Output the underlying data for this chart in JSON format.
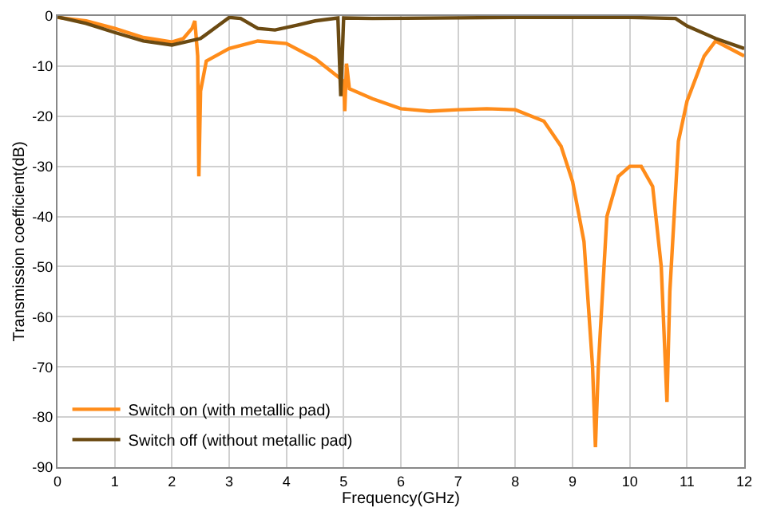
{
  "chart_data": {
    "type": "line",
    "xlabel": "Frequency(GHz)",
    "ylabel": "Transmission coefficient(dB)",
    "xlim": [
      0,
      12
    ],
    "xticks": [
      0,
      1,
      2,
      3,
      4,
      5,
      6,
      7,
      8,
      9,
      10,
      11,
      12
    ],
    "ylim": [
      -90,
      0
    ],
    "yticks": [
      -90,
      -80,
      -70,
      -60,
      -50,
      -40,
      -30,
      -20,
      -10,
      0
    ],
    "grid": true,
    "legend": "bottom left",
    "marker": "none",
    "line_style": "solid",
    "series": [
      {
        "name": "Switch on (with metallic pad)",
        "color": "#ff8c1a",
        "x": [
          0,
          0.5,
          1,
          1.5,
          2,
          2.2,
          2.35,
          2.4,
          2.45,
          2.47,
          2.5,
          2.6,
          3,
          3.5,
          4,
          4.5,
          5,
          5.02,
          5.05,
          5.1,
          5.5,
          6,
          6.5,
          7,
          7.5,
          8,
          8.5,
          8.8,
          9,
          9.2,
          9.35,
          9.4,
          9.45,
          9.6,
          9.8,
          10,
          10.2,
          10.4,
          10.55,
          10.65,
          10.7,
          10.85,
          11,
          11.3,
          11.5,
          12
        ],
        "values": [
          -0.3,
          -1,
          -2.5,
          -4.3,
          -5.2,
          -4.5,
          -2.5,
          -1,
          -8,
          -32,
          -15,
          -9,
          -6.5,
          -5,
          -5.5,
          -8.5,
          -13,
          -19,
          -9.5,
          -14.5,
          -16.5,
          -18.5,
          -19,
          -18.7,
          -18.5,
          -18.7,
          -21,
          -26,
          -33,
          -45,
          -70,
          -86,
          -70,
          -40,
          -32,
          -30,
          -30,
          -34,
          -50,
          -77,
          -55,
          -25,
          -17,
          -8,
          -5,
          -8
        ]
      },
      {
        "name": "Switch off (without metallic pad)",
        "color": "#6b4a12",
        "x": [
          0,
          0.5,
          1,
          1.5,
          2,
          2.5,
          2.8,
          3,
          3.2,
          3.5,
          3.8,
          4.2,
          4.5,
          4.9,
          4.95,
          5,
          5.5,
          8,
          10,
          10.8,
          11,
          11.5,
          12
        ],
        "values": [
          -0.2,
          -1.5,
          -3.3,
          -5,
          -5.8,
          -4.5,
          -2,
          -0.3,
          -0.5,
          -2.5,
          -2.8,
          -1.8,
          -1,
          -0.4,
          -16,
          -0.4,
          -0.5,
          -0.3,
          -0.3,
          -0.5,
          -2,
          -4.5,
          -6.5
        ]
      }
    ]
  }
}
